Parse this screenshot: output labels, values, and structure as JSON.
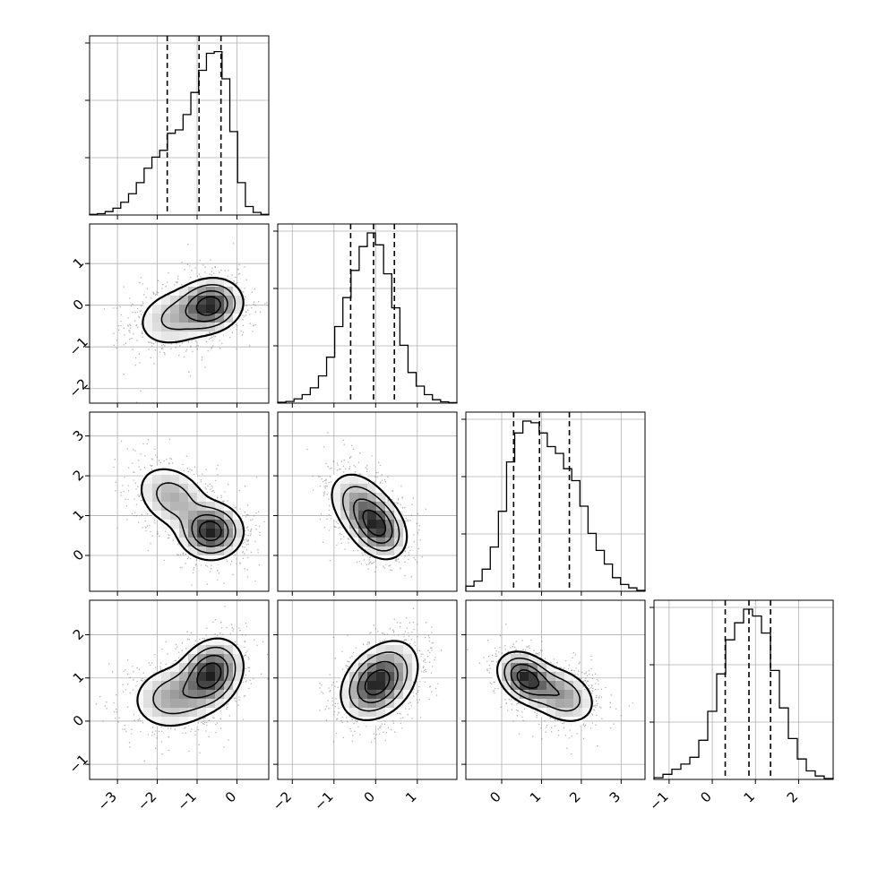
{
  "chart_data": {
    "type": "corner",
    "grid": true,
    "variables": [
      {
        "ticks": [
          -3,
          -2,
          -1,
          0
        ],
        "range": [
          -3.7,
          0.8
        ],
        "quantiles": [
          -1.75,
          -0.95,
          -0.4
        ],
        "hist": [
          0.004,
          0.008,
          0.02,
          0.04,
          0.075,
          0.125,
          0.19,
          0.275,
          0.34,
          0.38,
          0.48,
          0.5,
          0.59,
          0.72,
          0.85,
          0.95,
          0.96,
          0.8,
          0.49,
          0.19,
          0.05,
          0.015,
          0.004
        ]
      },
      {
        "ticks": [
          -2,
          -1,
          0,
          1
        ],
        "range": [
          -2.35,
          1.95
        ],
        "quantiles": [
          -0.6,
          -0.05,
          0.45
        ],
        "hist": [
          0.005,
          0.01,
          0.025,
          0.05,
          0.09,
          0.16,
          0.27,
          0.45,
          0.62,
          0.78,
          0.92,
          1.0,
          0.93,
          0.76,
          0.56,
          0.34,
          0.18,
          0.1,
          0.05,
          0.02,
          0.008,
          0.003
        ]
      },
      {
        "ticks": [
          0,
          1,
          2,
          3
        ],
        "range": [
          -0.9,
          3.6
        ],
        "quantiles": [
          0.3,
          0.95,
          1.7
        ],
        "hist": [
          0.03,
          0.06,
          0.13,
          0.26,
          0.47,
          0.76,
          0.93,
          1.0,
          0.99,
          0.93,
          0.85,
          0.81,
          0.72,
          0.65,
          0.5,
          0.34,
          0.24,
          0.16,
          0.08,
          0.04,
          0.02,
          0.005
        ]
      },
      {
        "ticks": [
          -1,
          0,
          1,
          2
        ],
        "range": [
          -1.35,
          2.8
        ],
        "quantiles": [
          0.3,
          0.85,
          1.35
        ],
        "hist": [
          0.01,
          0.03,
          0.06,
          0.09,
          0.13,
          0.23,
          0.4,
          0.62,
          0.82,
          0.92,
          1.0,
          0.96,
          0.86,
          0.64,
          0.42,
          0.24,
          0.12,
          0.05,
          0.02,
          0.005
        ]
      }
    ],
    "pairs": [
      {
        "row": 1,
        "col": 0,
        "modes": [
          {
            "x": -0.65,
            "y": 0.0,
            "sx": 0.4,
            "sy": 0.32,
            "rho": 0.1,
            "w": 0.6
          },
          {
            "x": -1.55,
            "y": -0.3,
            "sx": 0.55,
            "sy": 0.4,
            "rho": 0.2,
            "w": 0.4
          }
        ]
      },
      {
        "row": 2,
        "col": 0,
        "modes": [
          {
            "x": -0.65,
            "y": 0.6,
            "sx": 0.4,
            "sy": 0.35,
            "rho": 0.0,
            "w": 0.6
          },
          {
            "x": -1.6,
            "y": 1.45,
            "sx": 0.5,
            "sy": 0.45,
            "rho": -0.3,
            "w": 0.4
          }
        ]
      },
      {
        "row": 3,
        "col": 0,
        "modes": [
          {
            "x": -0.65,
            "y": 1.1,
            "sx": 0.4,
            "sy": 0.4,
            "rho": 0.2,
            "w": 0.6
          },
          {
            "x": -1.6,
            "y": 0.55,
            "sx": 0.55,
            "sy": 0.4,
            "rho": 0.1,
            "w": 0.4
          }
        ]
      },
      {
        "row": 2,
        "col": 1,
        "modes": [
          {
            "x": 0.05,
            "y": 0.7,
            "sx": 0.35,
            "sy": 0.4,
            "rho": -0.3,
            "w": 0.6
          },
          {
            "x": -0.4,
            "y": 1.3,
            "sx": 0.4,
            "sy": 0.45,
            "rho": -0.3,
            "w": 0.4
          }
        ]
      },
      {
        "row": 3,
        "col": 1,
        "modes": [
          {
            "x": -0.05,
            "y": 0.85,
            "sx": 0.4,
            "sy": 0.4,
            "rho": 0.3,
            "w": 0.6
          },
          {
            "x": 0.3,
            "y": 1.05,
            "sx": 0.45,
            "sy": 0.5,
            "rho": 0.3,
            "w": 0.4
          }
        ]
      },
      {
        "row": 3,
        "col": 2,
        "modes": [
          {
            "x": 0.6,
            "y": 1.0,
            "sx": 0.35,
            "sy": 0.3,
            "rho": -0.3,
            "w": 0.55
          },
          {
            "x": 1.5,
            "y": 0.6,
            "sx": 0.45,
            "sy": 0.35,
            "rho": -0.3,
            "w": 0.45
          }
        ]
      }
    ]
  }
}
